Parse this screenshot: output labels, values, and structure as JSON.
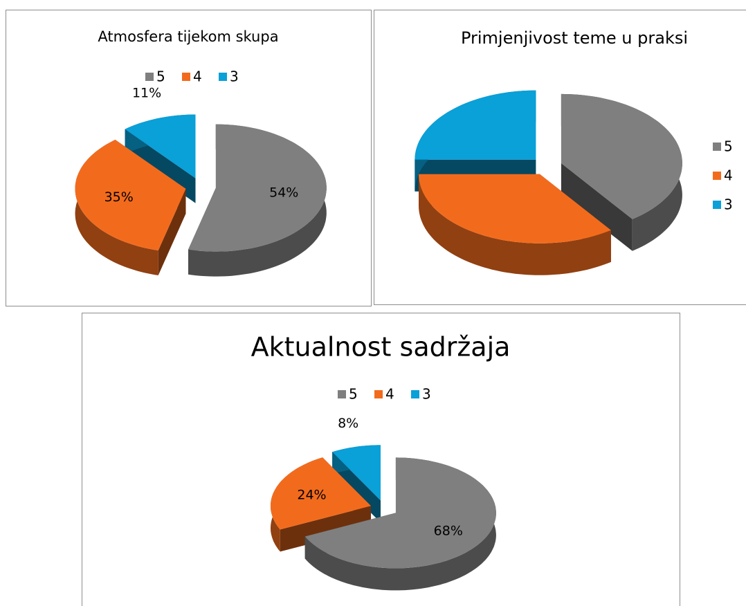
{
  "chart_data": [
    {
      "type": "pie",
      "title": "Atmosfera tijekom skupa",
      "categories": [
        "5",
        "4",
        "3"
      ],
      "values": [
        54,
        35,
        11
      ],
      "value_labels": [
        "54%",
        "35%",
        "11%"
      ],
      "colors": [
        "#7f7f7f",
        "#f26b1d",
        "#0aa0d8"
      ],
      "legend": "top"
    },
    {
      "type": "pie",
      "title": "Primjenjivost teme u praksi",
      "categories": [
        "5",
        "4",
        "3"
      ],
      "values": [
        40,
        35,
        25
      ],
      "colors": [
        "#7f7f7f",
        "#f26b1d",
        "#0aa0d8"
      ],
      "legend": "right"
    },
    {
      "type": "pie",
      "title": "Aktualnost sadržaja",
      "categories": [
        "5",
        "4",
        "3"
      ],
      "values": [
        68,
        24,
        8
      ],
      "value_labels": [
        "68%",
        "24%",
        "8%"
      ],
      "colors": [
        "#7f7f7f",
        "#f26b1d",
        "#0aa0d8"
      ],
      "legend": "top"
    }
  ]
}
